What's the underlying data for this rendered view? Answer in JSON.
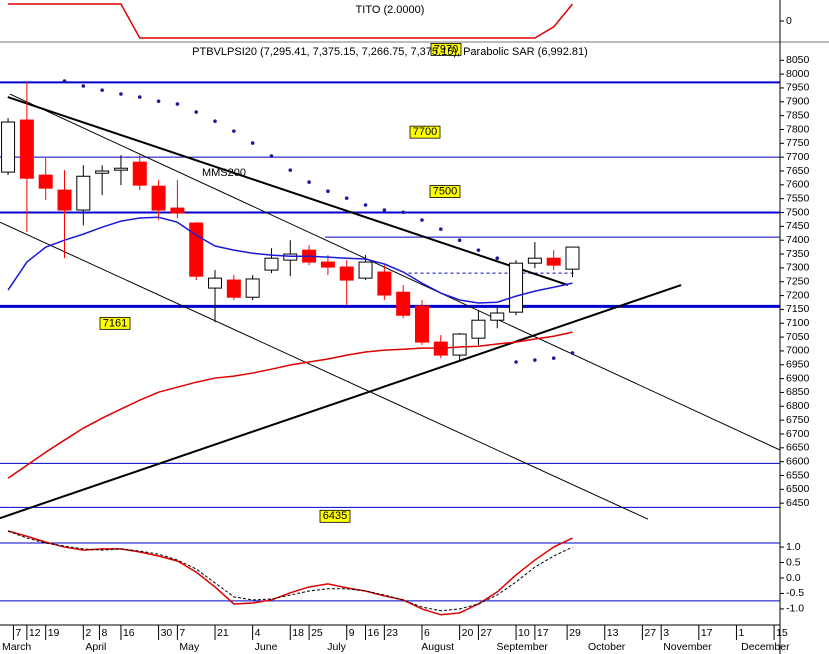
{
  "chart_data": [
    {
      "type": "line",
      "title": "TITO (2.0000)",
      "ylim": [
        -2.47,
        2.47
      ],
      "yticks": [
        0
      ],
      "series": [
        {
          "color": "#e00000",
          "values": [
            2,
            2,
            2,
            2,
            2,
            2,
            2,
            -2,
            -2,
            -2,
            -2,
            -2,
            -2,
            -2,
            -2,
            -2,
            -2,
            -2,
            -2,
            -2,
            -2,
            -2,
            -2,
            -2,
            -2,
            -2,
            -2,
            -2,
            -2,
            -0.7,
            2
          ]
        }
      ]
    },
    {
      "type": "candlestick",
      "title": "PTBVLPSI20 (7,295.41, 7,375.15, 7,266.75, 7,375.15), Parabolic SAR (6,992.81)",
      "xlim": [
        61,
        351.2
      ],
      "x": [
        64,
        71,
        78,
        85,
        92,
        99,
        106,
        113,
        120,
        127,
        134,
        141,
        148,
        155,
        162,
        169,
        176,
        183,
        190,
        197,
        204,
        211,
        218,
        225,
        232,
        239,
        246,
        253,
        260,
        267,
        274
      ],
      "open": [
        7646,
        7834,
        7635,
        7581,
        7509,
        7642,
        7653,
        7682,
        7595,
        7516,
        7462,
        7227,
        7256,
        7194,
        7292,
        7328,
        7364,
        7321,
        7303,
        7263,
        7285,
        7212,
        7162,
        7032,
        6985,
        7046,
        7111,
        7140,
        7317,
        7335,
        7295.41
      ],
      "high": [
        7841,
        7971,
        7697,
        7653,
        7671,
        7671,
        7707,
        7707,
        7617,
        7617,
        7465,
        7292,
        7274,
        7274,
        7371,
        7400,
        7382,
        7346,
        7328,
        7346,
        7310,
        7238,
        7184,
        7057,
        7065,
        7147,
        7165,
        7328,
        7393,
        7364,
        7375.15
      ],
      "low": [
        7635,
        7429,
        7545,
        7335,
        7454,
        7563,
        7599,
        7581,
        7473,
        7480,
        7256,
        7104,
        7184,
        7184,
        7281,
        7270,
        7310,
        7274,
        7166,
        7256,
        7184,
        7118,
        7021,
        6974,
        6967,
        7021,
        7082,
        7129,
        7299,
        7292,
        7266.75
      ],
      "close": [
        7827,
        7624,
        7588,
        7509,
        7631,
        7650,
        7660,
        7599,
        7509,
        7498,
        7270,
        7263,
        7194,
        7260,
        7335,
        7350,
        7321,
        7303,
        7256,
        7321,
        7202,
        7129,
        7032,
        6985,
        7061,
        7111,
        7137,
        7317,
        7335,
        7310,
        7375.15
      ],
      "series": [
        {
          "name": "MMS200",
          "color": "#1a1ad8",
          "values": [
            7220,
            7321,
            7375,
            7400,
            7422,
            7447,
            7469,
            7480,
            7483,
            7465,
            7418,
            7379,
            7364,
            7353,
            7346,
            7342,
            7342,
            7339,
            7335,
            7332,
            7314,
            7285,
            7245,
            7209,
            7184,
            7173,
            7176,
            7198,
            7216,
            7230,
            7245
          ]
        },
        {
          "color": "#e00000",
          "values": [
            6540,
            6587,
            6634,
            6678,
            6721,
            6757,
            6790,
            6822,
            6851,
            6869,
            6887,
            6902,
            6909,
            6920,
            6934,
            6949,
            6960,
            6971,
            6985,
            6996,
            7003,
            7006,
            7010,
            7010,
            7014,
            7017,
            7025,
            7032,
            7043,
            7053,
            7068
          ]
        },
        {
          "color": "#1a1a9a",
          "style": "dots",
          "values": [
            null,
            null,
            null,
            7975,
            7957,
            7942,
            7928,
            7917,
            7902,
            7892,
            7863,
            7830,
            7794,
            7751,
            7704,
            7653,
            7610,
            7577,
            7552,
            7527,
            7509,
            7501,
            7473,
            7440,
            7400,
            7364,
            7335,
            6960,
            6967,
            6974,
            6992.81
          ]
        }
      ],
      "trendline_color": "#000000",
      "trendlines": [
        {
          "x": [
            63.9,
            272.3
          ],
          "values": [
            7917,
            7238
          ],
          "width": 2
        },
        {
          "x": [
            64.7,
            351.2
          ],
          "values": [
            7928,
            6642
          ],
          "width": 1
        },
        {
          "x": [
            61,
            302.1
          ],
          "values": [
            7465,
            6392
          ],
          "width": 1
        },
        {
          "x": [
            61,
            314.4
          ],
          "values": [
            6396,
            7238
          ],
          "width": 2
        }
      ],
      "hline_color": "#0000cc",
      "hlines": [
        {
          "value": 7970,
          "label": "7970",
          "width": 2
        },
        {
          "value": 7700,
          "label": "7700",
          "width": 1
        },
        {
          "value": 7500,
          "label": "7500",
          "width": 2
        },
        {
          "value": 7411,
          "from": 182,
          "width": 1
        },
        {
          "value": 7281,
          "from": 213,
          "to": 275,
          "width": 1,
          "dash": true
        },
        {
          "value": 7161,
          "label": "7161",
          "width": 3
        },
        {
          "value": 6594,
          "width": 1
        },
        {
          "value": 6435,
          "label": "6435",
          "width": 1
        }
      ],
      "ylim": [
        6382,
        8116
      ],
      "yticks": [
        8050,
        8000,
        7950,
        7900,
        7850,
        7800,
        7750,
        7700,
        7650,
        7600,
        7550,
        7500,
        7450,
        7400,
        7350,
        7300,
        7250,
        7200,
        7150,
        7100,
        7050,
        7000,
        6950,
        6900,
        6850,
        6800,
        6750,
        6700,
        6650,
        6600,
        6550,
        6500,
        6450
      ],
      "xticks": [
        {
          "value": 66,
          "label": "7"
        },
        {
          "value": 71,
          "label": "12"
        },
        {
          "value": 78,
          "label": "19"
        },
        {
          "value": 92,
          "label": "2"
        },
        {
          "value": 98,
          "label": "8"
        },
        {
          "value": 106,
          "label": "16"
        },
        {
          "value": 120,
          "label": "30"
        },
        {
          "value": 127,
          "label": "7"
        },
        {
          "value": 141,
          "label": "21"
        },
        {
          "value": 155,
          "label": "4"
        },
        {
          "value": 169,
          "label": "18"
        },
        {
          "value": 176,
          "label": "25"
        },
        {
          "value": 190,
          "label": "9"
        },
        {
          "value": 197,
          "label": "16"
        },
        {
          "value": 204,
          "label": "23"
        },
        {
          "value": 218,
          "label": "6"
        },
        {
          "value": 232,
          "label": "20"
        },
        {
          "value": 239,
          "label": "27"
        },
        {
          "value": 253,
          "label": "10"
        },
        {
          "value": 260,
          "label": "17"
        },
        {
          "value": 272,
          "label": "29"
        },
        {
          "value": 286,
          "label": "13"
        },
        {
          "value": 300,
          "label": "27"
        },
        {
          "value": 307,
          "label": "3"
        },
        {
          "value": 321,
          "label": "17"
        },
        {
          "value": 335,
          "label": "1"
        },
        {
          "value": 349,
          "label": "15"
        }
      ],
      "months": [
        {
          "value": 61,
          "label": "March"
        },
        {
          "value": 92,
          "label": "April"
        },
        {
          "value": 127,
          "label": "May"
        },
        {
          "value": 155,
          "label": "June"
        },
        {
          "value": 182,
          "label": "July"
        },
        {
          "value": 217,
          "label": "August"
        },
        {
          "value": 245,
          "label": "September"
        },
        {
          "value": 279,
          "label": "October"
        },
        {
          "value": 307,
          "label": "November"
        },
        {
          "value": 336,
          "label": "December"
        }
      ]
    },
    {
      "type": "line",
      "ylim": [
        -1.52,
        1.81
      ],
      "yticks": [
        {
          "value": 1,
          "label": "1.0"
        },
        {
          "value": 0.5,
          "label": "0.5"
        },
        {
          "value": 0,
          "label": "0.0"
        },
        {
          "value": -0.5,
          "label": "-0.5"
        },
        {
          "value": -1,
          "label": "-1.0"
        }
      ],
      "hline_color": "#0000cc",
      "hlines": [
        {
          "value": 1.13,
          "width": 1
        },
        {
          "value": -0.74,
          "width": 1
        }
      ],
      "series": [
        {
          "color": "#e00000",
          "values": [
            1.52,
            1.35,
            1.16,
            1.0,
            0.9,
            0.94,
            0.94,
            0.84,
            0.71,
            0.55,
            0.19,
            -0.29,
            -0.84,
            -0.81,
            -0.71,
            -0.48,
            -0.29,
            -0.19,
            -0.32,
            -0.42,
            -0.58,
            -0.71,
            -1.0,
            -1.19,
            -1.13,
            -0.84,
            -0.45,
            0.1,
            0.58,
            1.0,
            1.29
          ]
        },
        {
          "color": "#000000",
          "dash": true,
          "values": [
            1.52,
            1.29,
            1.13,
            1.03,
            0.94,
            0.9,
            0.94,
            0.87,
            0.77,
            0.58,
            0.29,
            -0.16,
            -0.61,
            -0.71,
            -0.68,
            -0.55,
            -0.42,
            -0.35,
            -0.35,
            -0.42,
            -0.55,
            -0.71,
            -0.94,
            -1.06,
            -1.0,
            -0.84,
            -0.55,
            -0.13,
            0.35,
            0.71,
            1.0
          ]
        }
      ]
    }
  ]
}
